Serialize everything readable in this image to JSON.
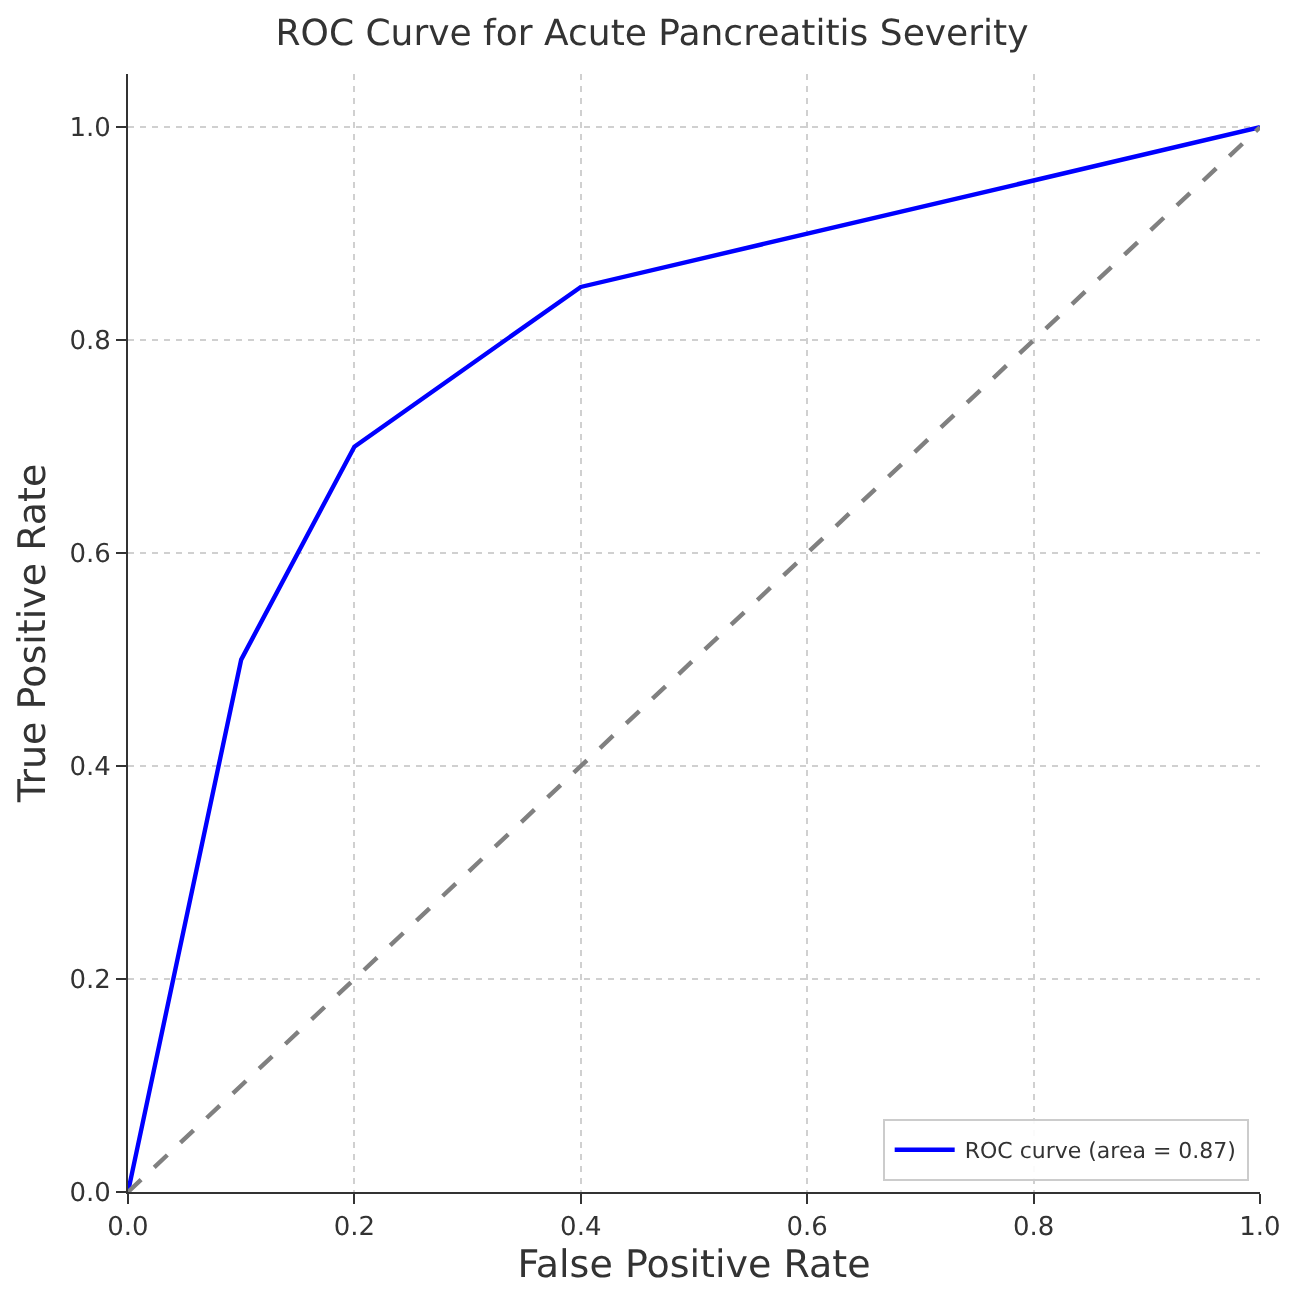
{
  "chart_data": {
    "type": "line",
    "title": "ROC Curve for Acute Pancreatitis Severity",
    "xlabel": "False Positive Rate",
    "ylabel": "True Positive Rate",
    "series": [
      {
        "name": "ROC curve (area = 0.87)",
        "color": "#0000ff",
        "x": [
          0,
          0.1,
          0.2,
          0.4,
          1.0
        ],
        "values": [
          0,
          0.5,
          0.7,
          0.85,
          1.0
        ],
        "line_style": "solid"
      },
      {
        "color": "#808080",
        "x": [
          0,
          1.0
        ],
        "values": [
          0,
          1.0
        ],
        "line_style": "dashed"
      }
    ],
    "xlim": [
      0,
      1.0
    ],
    "ylim": [
      0,
      1.05
    ],
    "xticks": [
      {
        "value": 0,
        "label": "0.0"
      },
      0.2,
      0.4,
      0.6,
      0.8,
      {
        "value": 1,
        "label": "1.0"
      }
    ],
    "yticks": [
      {
        "value": 0,
        "label": "0.0"
      },
      0.2,
      0.4,
      0.6,
      0.8,
      {
        "value": 1,
        "label": "1.0"
      }
    ],
    "grid": true,
    "legend": "bottom right",
    "marker": "none"
  }
}
